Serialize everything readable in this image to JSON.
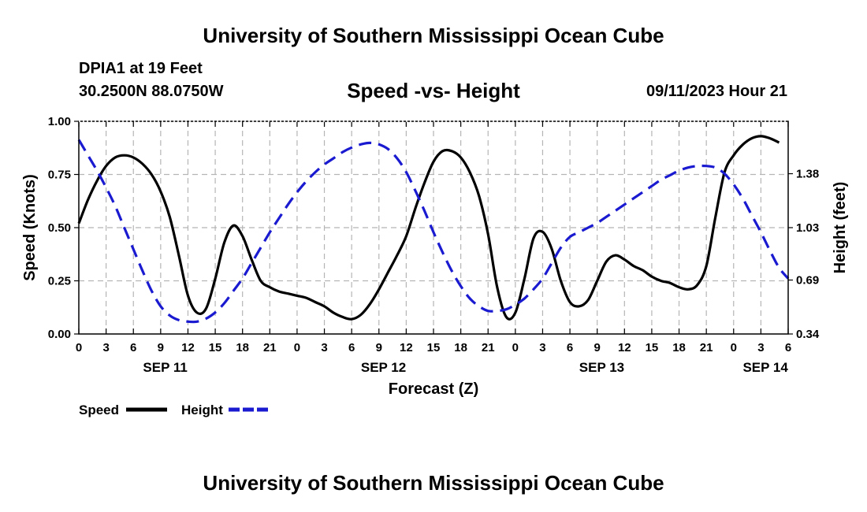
{
  "header": {
    "title_top": "University of Southern Mississippi Ocean Cube",
    "station": "DPIA1 at 19 Feet",
    "coords": "30.2500N  88.0750W",
    "chart_title": "Speed -vs- Height",
    "datetime": "09/11/2023 Hour 21",
    "title_bottom": "University of Southern Mississippi Ocean Cube"
  },
  "colors": {
    "speed": "#000000",
    "height": "#1a1ad0",
    "grid": "#b5b5b5"
  },
  "chart_data": {
    "type": "line",
    "title": "Speed -vs- Height",
    "xlabel": "Forecast (Z)",
    "ylabel": "Speed (Knots)",
    "ylabel_right": "Height (feet)",
    "x_range_hours": [
      0,
      78
    ],
    "x_tick_step_hours": 3,
    "x_tick_labels": [
      "0",
      "3",
      "6",
      "9",
      "12",
      "15",
      "18",
      "21",
      "0",
      "3",
      "6",
      "9",
      "12",
      "15",
      "18",
      "21",
      "0",
      "3",
      "6",
      "9",
      "12",
      "15",
      "18",
      "21",
      "0",
      "3",
      "6"
    ],
    "date_labels": [
      {
        "label": "SEP 11",
        "hour": 9.5
      },
      {
        "label": "SEP 12",
        "hour": 33.5
      },
      {
        "label": "SEP 13",
        "hour": 57.5
      },
      {
        "label": "SEP 14",
        "hour": 75.5
      }
    ],
    "ylim_left": [
      0,
      1
    ],
    "yticks_left": [
      0,
      0.25,
      0.5,
      0.75,
      1
    ],
    "ytick_labels_left": [
      "0.00",
      "0.25",
      "0.50",
      "0.75",
      "1.00"
    ],
    "ylim_right": [
      0.34,
      1.72
    ],
    "yticks_right": [
      0.34,
      0.69,
      1.03,
      1.38
    ],
    "ytick_labels_right": [
      "0.34",
      "0.69",
      "1.03",
      "1.38"
    ],
    "grid": true,
    "legend": [
      {
        "label": "Speed",
        "style": "solid"
      },
      {
        "label": "Height",
        "style": "dashed"
      }
    ],
    "series": [
      {
        "name": "Speed",
        "axis": "left",
        "style": "solid",
        "points": [
          [
            0,
            0.52
          ],
          [
            1,
            0.63
          ],
          [
            2,
            0.72
          ],
          [
            3,
            0.79
          ],
          [
            4,
            0.83
          ],
          [
            5,
            0.84
          ],
          [
            6,
            0.83
          ],
          [
            7,
            0.8
          ],
          [
            8,
            0.75
          ],
          [
            9,
            0.67
          ],
          [
            10,
            0.55
          ],
          [
            11,
            0.37
          ],
          [
            12,
            0.18
          ],
          [
            13,
            0.1
          ],
          [
            14,
            0.12
          ],
          [
            15,
            0.26
          ],
          [
            16,
            0.43
          ],
          [
            17,
            0.51
          ],
          [
            18,
            0.46
          ],
          [
            19,
            0.35
          ],
          [
            20,
            0.25
          ],
          [
            21,
            0.22
          ],
          [
            22,
            0.2
          ],
          [
            23,
            0.19
          ],
          [
            24,
            0.18
          ],
          [
            25,
            0.17
          ],
          [
            26,
            0.15
          ],
          [
            27,
            0.13
          ],
          [
            28,
            0.1
          ],
          [
            29,
            0.08
          ],
          [
            30,
            0.07
          ],
          [
            31,
            0.09
          ],
          [
            32,
            0.14
          ],
          [
            33,
            0.21
          ],
          [
            34,
            0.29
          ],
          [
            35,
            0.37
          ],
          [
            36,
            0.46
          ],
          [
            37,
            0.59
          ],
          [
            38,
            0.71
          ],
          [
            39,
            0.81
          ],
          [
            40,
            0.86
          ],
          [
            41,
            0.86
          ],
          [
            42,
            0.83
          ],
          [
            43,
            0.76
          ],
          [
            44,
            0.65
          ],
          [
            45,
            0.47
          ],
          [
            46,
            0.22
          ],
          [
            47,
            0.08
          ],
          [
            48,
            0.1
          ],
          [
            49,
            0.26
          ],
          [
            50,
            0.45
          ],
          [
            51,
            0.48
          ],
          [
            52,
            0.4
          ],
          [
            53,
            0.25
          ],
          [
            54,
            0.15
          ],
          [
            55,
            0.13
          ],
          [
            56,
            0.16
          ],
          [
            57,
            0.25
          ],
          [
            58,
            0.34
          ],
          [
            59,
            0.37
          ],
          [
            60,
            0.35
          ],
          [
            61,
            0.32
          ],
          [
            62,
            0.3
          ],
          [
            63,
            0.27
          ],
          [
            64,
            0.25
          ],
          [
            65,
            0.24
          ],
          [
            66,
            0.22
          ],
          [
            67,
            0.21
          ],
          [
            68,
            0.23
          ],
          [
            69,
            0.32
          ],
          [
            70,
            0.55
          ],
          [
            71,
            0.76
          ],
          [
            72,
            0.84
          ],
          [
            73,
            0.89
          ],
          [
            74,
            0.92
          ],
          [
            75,
            0.93
          ],
          [
            76,
            0.92
          ],
          [
            77,
            0.9
          ]
        ]
      },
      {
        "name": "Height",
        "axis": "right",
        "style": "dashed",
        "points": [
          [
            0,
            1.6
          ],
          [
            1,
            1.5
          ],
          [
            2,
            1.4
          ],
          [
            3,
            1.29
          ],
          [
            4,
            1.17
          ],
          [
            5,
            1.03
          ],
          [
            6,
            0.89
          ],
          [
            7,
            0.75
          ],
          [
            8,
            0.62
          ],
          [
            9,
            0.52
          ],
          [
            10,
            0.46
          ],
          [
            11,
            0.43
          ],
          [
            12,
            0.42
          ],
          [
            13,
            0.42
          ],
          [
            14,
            0.44
          ],
          [
            15,
            0.48
          ],
          [
            16,
            0.54
          ],
          [
            17,
            0.62
          ],
          [
            18,
            0.7
          ],
          [
            19,
            0.8
          ],
          [
            20,
            0.9
          ],
          [
            21,
            1.0
          ],
          [
            22,
            1.09
          ],
          [
            23,
            1.18
          ],
          [
            24,
            1.26
          ],
          [
            25,
            1.33
          ],
          [
            26,
            1.39
          ],
          [
            27,
            1.44
          ],
          [
            28,
            1.48
          ],
          [
            29,
            1.52
          ],
          [
            30,
            1.55
          ],
          [
            31,
            1.57
          ],
          [
            32,
            1.58
          ],
          [
            33,
            1.57
          ],
          [
            34,
            1.54
          ],
          [
            35,
            1.48
          ],
          [
            36,
            1.39
          ],
          [
            37,
            1.27
          ],
          [
            38,
            1.14
          ],
          [
            39,
            1.0
          ],
          [
            40,
            0.87
          ],
          [
            41,
            0.75
          ],
          [
            42,
            0.65
          ],
          [
            43,
            0.57
          ],
          [
            44,
            0.52
          ],
          [
            45,
            0.49
          ],
          [
            46,
            0.49
          ],
          [
            47,
            0.5
          ],
          [
            48,
            0.53
          ],
          [
            49,
            0.57
          ],
          [
            50,
            0.63
          ],
          [
            51,
            0.7
          ],
          [
            52,
            0.8
          ],
          [
            53,
            0.9
          ],
          [
            54,
            0.97
          ],
          [
            55,
            1.0
          ],
          [
            56,
            1.03
          ],
          [
            57,
            1.06
          ],
          [
            58,
            1.1
          ],
          [
            59,
            1.14
          ],
          [
            60,
            1.18
          ],
          [
            61,
            1.22
          ],
          [
            62,
            1.26
          ],
          [
            63,
            1.3
          ],
          [
            64,
            1.34
          ],
          [
            65,
            1.37
          ],
          [
            66,
            1.4
          ],
          [
            67,
            1.42
          ],
          [
            68,
            1.43
          ],
          [
            69,
            1.43
          ],
          [
            70,
            1.42
          ],
          [
            71,
            1.38
          ],
          [
            72,
            1.31
          ],
          [
            73,
            1.22
          ],
          [
            74,
            1.11
          ],
          [
            75,
            1.0
          ],
          [
            76,
            0.88
          ],
          [
            77,
            0.77
          ],
          [
            78,
            0.7
          ]
        ]
      }
    ]
  }
}
